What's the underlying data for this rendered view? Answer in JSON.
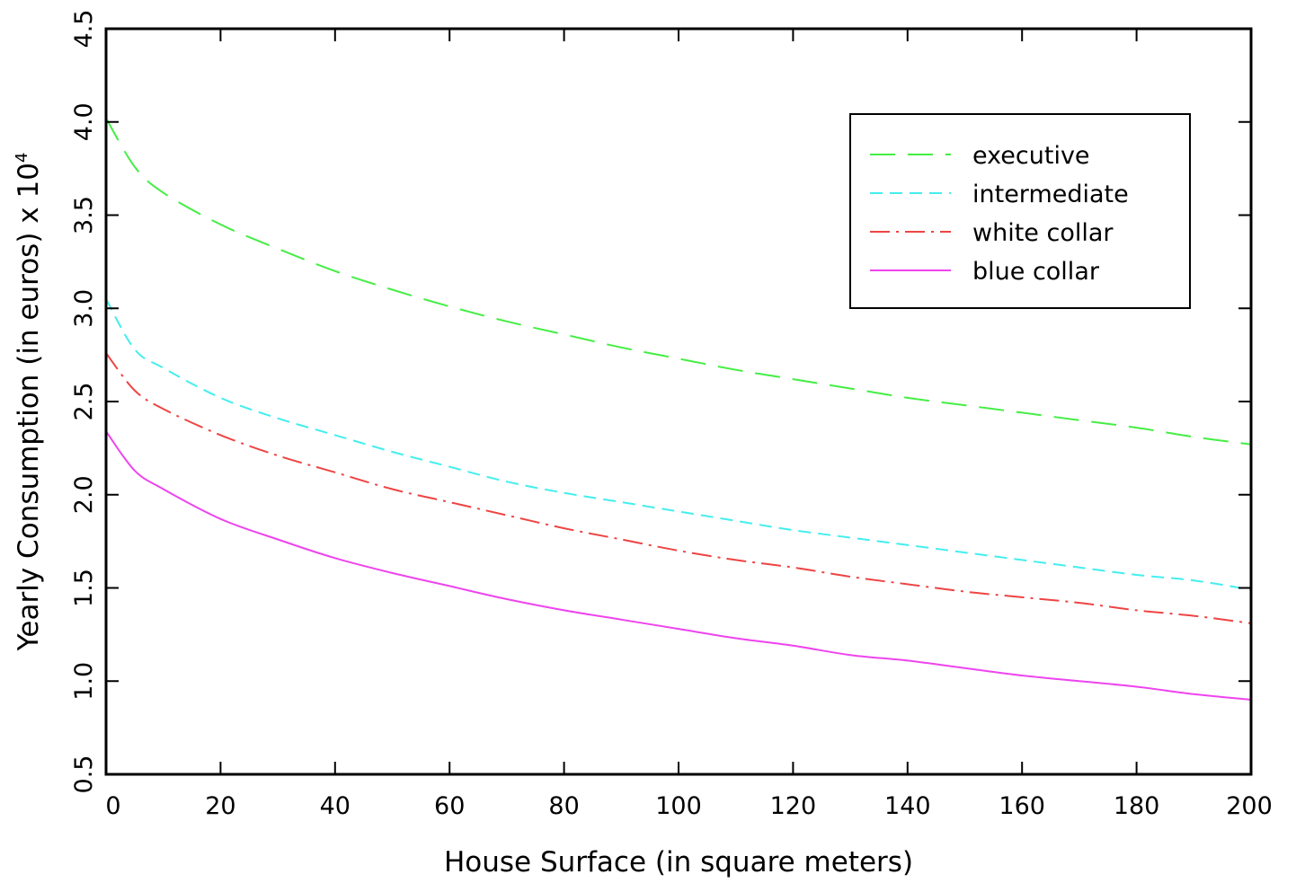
{
  "chart_data": {
    "type": "line",
    "title": "",
    "xlabel": "House Surface (in square meters)",
    "ylabel": "Yearly Consumption (in euros) x 10",
    "ylabel_exponent": "4",
    "xlim": [
      0,
      200
    ],
    "ylim": [
      0.5,
      4.5
    ],
    "xticks": [
      0,
      20,
      40,
      60,
      80,
      100,
      120,
      140,
      160,
      180,
      200
    ],
    "yticks": [
      0.5,
      1.0,
      1.5,
      2.0,
      2.5,
      3.0,
      3.5,
      4.0,
      4.5
    ],
    "xtick_labels": [
      "0",
      "20",
      "40",
      "60",
      "80",
      "100",
      "120",
      "140",
      "160",
      "180",
      "200"
    ],
    "ytick_labels": [
      "0.5",
      "1.0",
      "1.5",
      "2.0",
      "2.5",
      "3.0",
      "3.5",
      "4.0",
      "4.5"
    ],
    "grid": false,
    "legend_position": "top-right",
    "x": [
      0,
      5,
      10,
      20,
      30,
      40,
      50,
      60,
      70,
      80,
      90,
      100,
      110,
      120,
      130,
      140,
      150,
      160,
      170,
      180,
      190,
      200
    ],
    "series": [
      {
        "name": "executive",
        "color": "#44ee44",
        "dash": "28 14",
        "values": [
          4.02,
          3.76,
          3.62,
          3.45,
          3.32,
          3.2,
          3.1,
          3.01,
          2.93,
          2.86,
          2.79,
          2.73,
          2.67,
          2.62,
          2.57,
          2.52,
          2.48,
          2.44,
          2.4,
          2.36,
          2.31,
          2.27
        ]
      },
      {
        "name": "intermediate",
        "color": "#44eeee",
        "dash": "14 8",
        "values": [
          3.05,
          2.78,
          2.68,
          2.52,
          2.41,
          2.32,
          2.23,
          2.15,
          2.07,
          2.01,
          1.96,
          1.91,
          1.86,
          1.81,
          1.77,
          1.73,
          1.69,
          1.65,
          1.61,
          1.57,
          1.54,
          1.49
        ]
      },
      {
        "name": "white collar",
        "color": "#ee4444",
        "dash": "22 7 3 7",
        "values": [
          2.76,
          2.56,
          2.46,
          2.32,
          2.21,
          2.12,
          2.03,
          1.96,
          1.89,
          1.82,
          1.76,
          1.7,
          1.65,
          1.61,
          1.56,
          1.52,
          1.48,
          1.45,
          1.42,
          1.38,
          1.35,
          1.31
        ]
      },
      {
        "name": "blue collar",
        "color": "#ee44ee",
        "dash": "",
        "values": [
          2.34,
          2.13,
          2.03,
          1.87,
          1.76,
          1.66,
          1.58,
          1.51,
          1.44,
          1.38,
          1.33,
          1.28,
          1.23,
          1.19,
          1.14,
          1.11,
          1.07,
          1.03,
          1.0,
          0.97,
          0.93,
          0.9
        ]
      }
    ]
  }
}
